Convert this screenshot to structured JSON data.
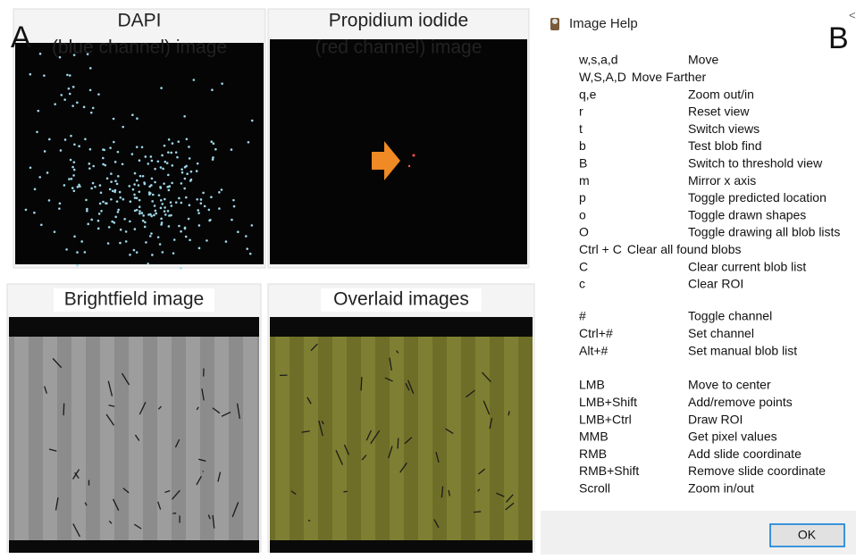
{
  "panel_a": {
    "label": "A",
    "images": [
      {
        "title_lines": [
          "DAPI",
          "(blue channel)  image"
        ]
      },
      {
        "title_lines": [
          "Propidium iodide",
          "(red  channel) image"
        ]
      },
      {
        "title_lines": [
          "Brightfield image"
        ]
      },
      {
        "title_lines": [
          "Overlaid images"
        ]
      }
    ]
  },
  "panel_b": {
    "label": "B",
    "window_title": "Image Help",
    "groups": [
      [
        [
          "w,s,a,d",
          "Move"
        ],
        [
          "W,S,A,D",
          "Move Farther"
        ],
        [
          "q,e",
          "Zoom out/in"
        ],
        [
          "r",
          "Reset view"
        ],
        [
          "t",
          "Switch views"
        ],
        [
          "b",
          "Test blob find"
        ],
        [
          "B",
          "Switch to threshold view"
        ],
        [
          "m",
          "Mirror x axis"
        ],
        [
          "p",
          "Toggle predicted location"
        ],
        [
          "o",
          "Toggle drawn shapes"
        ],
        [
          "O",
          "Toggle drawing all blob lists"
        ],
        [
          "Ctrl + C",
          "Clear all found blobs"
        ],
        [
          "C",
          "Clear current blob list"
        ],
        [
          "c",
          "Clear ROI"
        ]
      ],
      [
        [
          "#",
          "Toggle channel"
        ],
        [
          "Ctrl+#",
          "Set channel"
        ],
        [
          "Alt+#",
          "Set manual blob list"
        ]
      ],
      [
        [
          "LMB",
          "Move to center"
        ],
        [
          "LMB+Shift",
          "Add/remove points"
        ],
        [
          "LMB+Ctrl",
          "Draw ROI"
        ],
        [
          "MMB",
          "Get pixel values"
        ],
        [
          "RMB",
          "Add slide coordinate"
        ],
        [
          "RMB+Shift",
          "Remove slide coordinate"
        ],
        [
          "Scroll",
          "Zoom in/out"
        ]
      ]
    ],
    "button": "OK"
  }
}
